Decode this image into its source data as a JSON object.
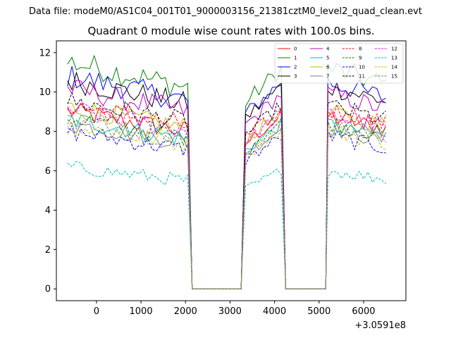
{
  "chart_data": {
    "type": "line",
    "suptitle": "Data file: modeM0/AS1C04_001T01_9000003156_21381cztM0_level2_quad_clean.evt",
    "title": "Quadrant 0 module wise count rates with 100.0s bins.",
    "xlabel": "",
    "ylabel": "",
    "x_offset_label": "+3.0591e8",
    "xlim": [
      -900,
      6950
    ],
    "ylim": [
      -0.6,
      12.6
    ],
    "xticks": [
      0,
      1000,
      2000,
      3000,
      4000,
      5000,
      6000
    ],
    "yticks": [
      0,
      2,
      4,
      6,
      8,
      10,
      12
    ],
    "legend_position": "top-right",
    "segments": [
      {
        "start": -650,
        "end": 2050
      },
      {
        "start": 3350,
        "end": 4150
      },
      {
        "start": 5200,
        "end": 6550
      }
    ],
    "gap_ends": [
      2150,
      3250,
      4250,
      5150
    ],
    "series": [
      {
        "name": "0",
        "color": "#ff0000",
        "dash": "solid",
        "level": 8.6
      },
      {
        "name": "1",
        "color": "#008000",
        "dash": "solid",
        "level": 11.0
      },
      {
        "name": "2",
        "color": "#0000ff",
        "dash": "solid",
        "level": 10.3
      },
      {
        "name": "3",
        "color": "#000000",
        "dash": "solid",
        "level": 10.1
      },
      {
        "name": "4",
        "color": "#bf00bf",
        "dash": "solid",
        "level": 9.7
      },
      {
        "name": "5",
        "color": "#00bfbf",
        "dash": "solid",
        "level": 8.2
      },
      {
        "name": "6",
        "color": "#bfbf00",
        "dash": "solid",
        "level": 8.8
      },
      {
        "name": "7",
        "color": "#808080",
        "dash": "solid",
        "level": 8.0
      },
      {
        "name": "8",
        "color": "#ff0000",
        "dash": "dashed",
        "level": 8.9
      },
      {
        "name": "9",
        "color": "#008000",
        "dash": "dashed",
        "level": 8.3
      },
      {
        "name": "10",
        "color": "#0000ff",
        "dash": "dashed",
        "level": 7.6
      },
      {
        "name": "11",
        "color": "#000000",
        "dash": "dashed",
        "level": 9.1
      },
      {
        "name": "12",
        "color": "#ff00ff",
        "dash": "dashed",
        "level": 8.7
      },
      {
        "name": "13",
        "color": "#00bfbf",
        "dash": "dashed",
        "level": 5.9
      },
      {
        "name": "14",
        "color": "#bfbf00",
        "dash": "dashed",
        "level": 7.9
      },
      {
        "name": "15",
        "color": "#808080",
        "dash": "dashed",
        "level": 8.1
      }
    ]
  }
}
